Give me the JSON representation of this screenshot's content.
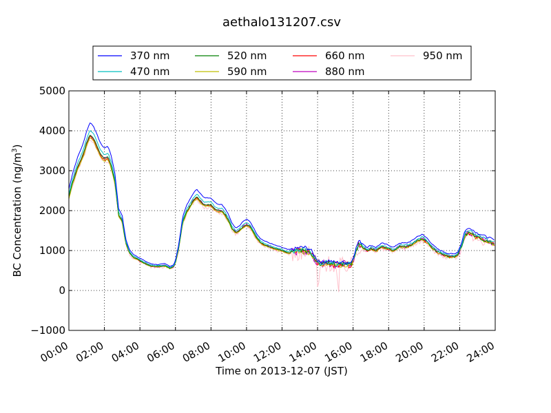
{
  "chart_data": {
    "type": "line",
    "title": "aethalo131207.csv",
    "xlabel": "Time on 2013-12-07 (JST)",
    "ylabel_main": "BC Concentration (ng/m",
    "ylabel_sup": "3",
    "ylabel_close": ")",
    "x_unit": "hours",
    "xlim": [
      0,
      24
    ],
    "ylim": [
      -1000,
      5000
    ],
    "x_ticks": [
      "00:00",
      "02:00",
      "04:00",
      "06:00",
      "08:00",
      "10:00",
      "12:00",
      "14:00",
      "16:00",
      "18:00",
      "20:00",
      "22:00",
      "24:00"
    ],
    "y_ticks": [
      "−1000",
      "0",
      "1000",
      "2000",
      "3000",
      "4000",
      "5000"
    ],
    "grid": true,
    "legend_position": "top",
    "series": [
      {
        "name": "370 nm",
        "color": "#0000ff",
        "scale": 1.08,
        "noise": 0.2
      },
      {
        "name": "470 nm",
        "color": "#00bfbf",
        "scale": 1.03,
        "noise": 0.25
      },
      {
        "name": "520 nm",
        "color": "#007f00",
        "scale": 1.0,
        "noise": 0.3
      },
      {
        "name": "590 nm",
        "color": "#bfbf00",
        "scale": 0.98,
        "noise": 0.35
      },
      {
        "name": "660 nm",
        "color": "#ff0000",
        "scale": 0.99,
        "noise": 0.4
      },
      {
        "name": "880 nm",
        "color": "#bf00bf",
        "scale": 1.0,
        "noise": 0.55
      },
      {
        "name": "950 nm",
        "color": "#ffc0cb",
        "scale": 0.97,
        "noise": 1.0
      }
    ],
    "base_profile": {
      "x": [
        0,
        0.2,
        0.5,
        0.8,
        1.0,
        1.2,
        1.4,
        1.6,
        1.8,
        2.0,
        2.2,
        2.4,
        2.6,
        2.8,
        3.0,
        3.2,
        3.4,
        3.6,
        3.8,
        4.0,
        4.3,
        4.6,
        5.0,
        5.4,
        5.7,
        5.9,
        6.0,
        6.2,
        6.4,
        6.6,
        6.8,
        7.0,
        7.2,
        7.4,
        7.6,
        7.8,
        8.0,
        8.2,
        8.4,
        8.6,
        8.8,
        9.0,
        9.2,
        9.4,
        9.6,
        9.8,
        10.0,
        10.2,
        10.4,
        10.6,
        10.8,
        11.0,
        11.3,
        11.6,
        12.0,
        12.3,
        12.6,
        13.0,
        13.3,
        13.6,
        14.0,
        14.3,
        14.6,
        15.0,
        15.3,
        15.6,
        15.9,
        16.1,
        16.3,
        16.5,
        16.8,
        17.0,
        17.3,
        17.6,
        18.0,
        18.3,
        18.6,
        19.0,
        19.3,
        19.6,
        19.9,
        20.2,
        20.5,
        20.8,
        21.1,
        21.4,
        21.7,
        21.9,
        22.1,
        22.3,
        22.6,
        22.9,
        23.2,
        23.5,
        23.8,
        24.0
      ],
      "y": [
        2350,
        2700,
        3100,
        3400,
        3700,
        3900,
        3800,
        3600,
        3400,
        3300,
        3350,
        3100,
        2700,
        1900,
        1750,
        1200,
        950,
        850,
        800,
        750,
        680,
        620,
        600,
        620,
        560,
        600,
        700,
        1100,
        1700,
        1950,
        2100,
        2250,
        2350,
        2250,
        2150,
        2150,
        2150,
        2050,
        2000,
        2000,
        1900,
        1750,
        1550,
        1450,
        1500,
        1600,
        1650,
        1600,
        1450,
        1300,
        1200,
        1150,
        1100,
        1050,
        1000,
        950,
        950,
        1000,
        1000,
        950,
        700,
        650,
        700,
        650,
        650,
        650,
        650,
        900,
        1150,
        1100,
        1000,
        1050,
        1000,
        1100,
        1050,
        1000,
        1100,
        1100,
        1150,
        1250,
        1300,
        1200,
        1050,
        950,
        900,
        850,
        850,
        900,
        1100,
        1400,
        1450,
        1350,
        1300,
        1250,
        1200,
        1150
      ]
    }
  }
}
